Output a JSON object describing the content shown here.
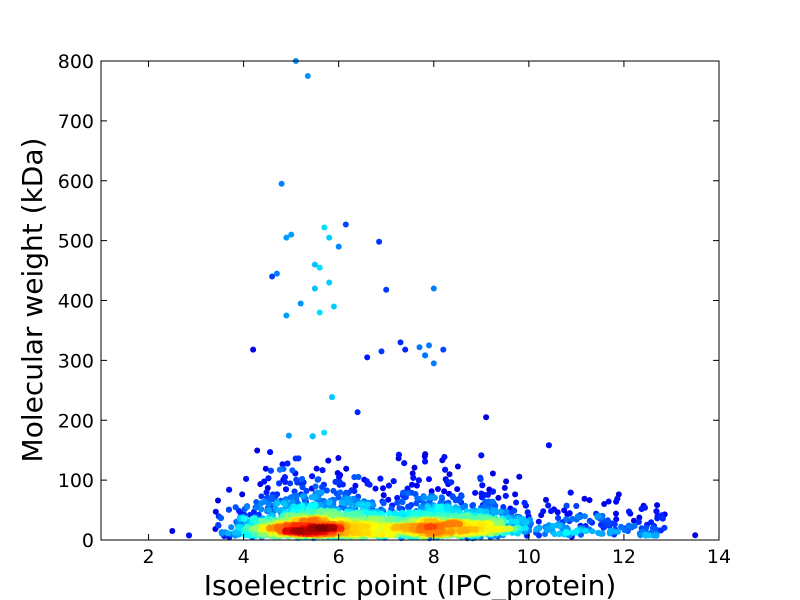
{
  "chart_data": {
    "type": "scatter",
    "title": "",
    "xlabel": "Isoelectric point (IPC_protein)",
    "ylabel": "Molecular weight (kDa)",
    "xlim": [
      1,
      14
    ],
    "ylim": [
      0,
      800
    ],
    "xticks": [
      2,
      4,
      6,
      8,
      10,
      12,
      14
    ],
    "yticks": [
      0,
      100,
      200,
      300,
      400,
      500,
      600,
      700,
      800
    ],
    "color_encoding": "point density (jet colormap: dark blue = sparse, red = dense)",
    "colors": {
      "sparse": "#00007f",
      "low": "#0000ff",
      "mid_low": "#00bfff",
      "mid": "#7fff7f",
      "mid_high": "#ffbf00",
      "dense": "#ff0000",
      "densest": "#7f0000"
    },
    "density_clusters": [
      {
        "x_center": 5.3,
        "y_center": 22,
        "description": "acidic protein peak"
      },
      {
        "x_center": 8.4,
        "y_center": 22,
        "description": "basic protein peak"
      }
    ],
    "notable_points": [
      {
        "x": 5.1,
        "y": 800
      },
      {
        "x": 5.35,
        "y": 775
      },
      {
        "x": 4.8,
        "y": 595
      },
      {
        "x": 5.7,
        "y": 522
      },
      {
        "x": 6.15,
        "y": 527
      },
      {
        "x": 6.85,
        "y": 498
      },
      {
        "x": 7.0,
        "y": 418
      },
      {
        "x": 8.0,
        "y": 420
      },
      {
        "x": 13.5,
        "y": 8
      },
      {
        "x": 2.5,
        "y": 15
      }
    ]
  }
}
